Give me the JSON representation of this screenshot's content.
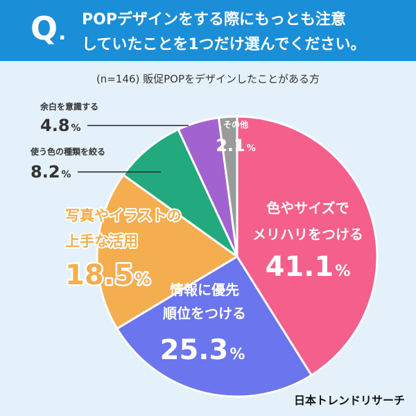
{
  "header": {
    "q_mark": "Q",
    "q_dot": ".",
    "question_line1": "POPデザインをする際にもっとも注意",
    "question_line2": "していたことを1つだけ選んでください。"
  },
  "sample_label": "(n=146) 販促POPをデザインしたことがある方",
  "brand": "日本トレンドリサーチ",
  "colors": {
    "header_bg": "#1b8ed8",
    "page_bg": "#e4f1fb"
  },
  "chart_data": {
    "type": "pie",
    "title": "",
    "unit": "%",
    "start": "12 o'clock, clockwise",
    "slices": [
      {
        "label_lines": [
          "色やサイズで",
          "メリハリをつける"
        ],
        "value": 41.1,
        "color": "#f4608b",
        "label_color": "#ffffff",
        "label_position": "inside"
      },
      {
        "label_lines": [
          "情報に優先",
          "順位をつける"
        ],
        "value": 25.3,
        "color": "#6b75ed",
        "label_color": "#ffffff",
        "label_position": "inside"
      },
      {
        "label_lines": [
          "写真やイラストの",
          "上手な活用"
        ],
        "value": 18.5,
        "color": "#f4ad4f",
        "label_color": "#f4ad4f",
        "label_position": "outside-left"
      },
      {
        "label_lines": [
          "使う色の種類を絞る"
        ],
        "value": 8.2,
        "color": "#22aa7e",
        "label_color": "#333333",
        "label_position": "callout"
      },
      {
        "label_lines": [
          "余白を意識する"
        ],
        "value": 4.8,
        "color": "#a262cf",
        "label_color": "#333333",
        "label_position": "callout"
      },
      {
        "label_lines": [
          "その他"
        ],
        "value": 2.1,
        "color": "#9a9a9a",
        "label_color": "#ffffff",
        "label_position": "inside"
      }
    ]
  }
}
